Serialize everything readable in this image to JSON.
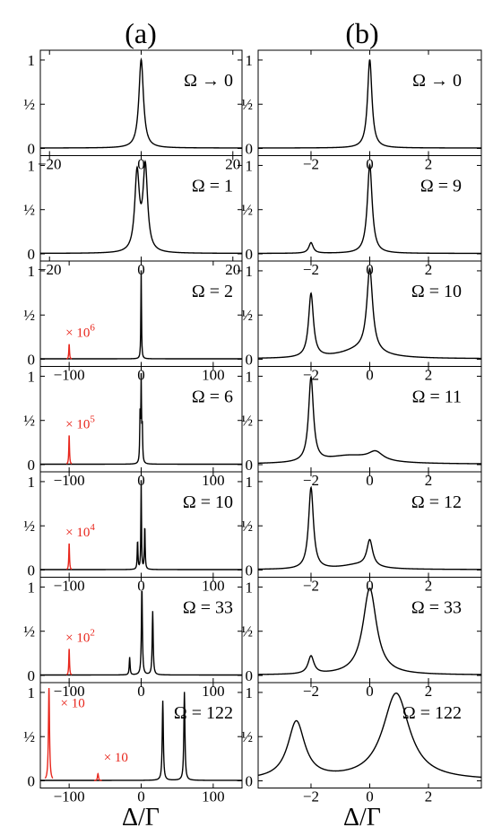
{
  "figure": {
    "column_titles": [
      "(a)",
      "(b)"
    ],
    "xlabel": "Δ/Γ",
    "y_ticks": [
      "1",
      "½",
      "0"
    ],
    "colors": {
      "curve": "#000000",
      "inset": "#e8261c",
      "axes": "#000000"
    }
  },
  "chart_data": [
    {
      "col": "a",
      "type": "line",
      "omega": "Ω → 0",
      "xlim": [
        -22,
        22
      ],
      "xticks": [
        "−20",
        "0",
        "20"
      ],
      "ylim": [
        0,
        1.05
      ],
      "series": [
        {
          "peaks": [
            {
              "x": 0,
              "h": 1.0,
              "w": 0.6
            }
          ],
          "baseline": 0.005
        }
      ],
      "scaled": null
    },
    {
      "col": "a",
      "type": "line",
      "omega": "Ω = 1",
      "xlim": [
        -22,
        22
      ],
      "xticks": [
        "−20",
        "0",
        "20"
      ],
      "ylim": [
        0,
        1.05
      ],
      "series": [
        {
          "peaks": [
            {
              "x": -0.9,
              "h": 0.88,
              "w": 0.6
            },
            {
              "x": 0.9,
              "h": 0.95,
              "w": 0.6
            }
          ],
          "baseline": 0.005
        }
      ],
      "scaled": null
    },
    {
      "col": "a",
      "type": "line",
      "omega": "Ω = 2",
      "xlim": [
        -140,
        140
      ],
      "xticks": [
        "−100",
        "0",
        "100"
      ],
      "ylim": [
        0,
        1.05
      ],
      "series": [
        {
          "peaks": [
            {
              "x": 0,
              "h": 1.0,
              "w": 0.5
            }
          ],
          "baseline": 0.005
        }
      ],
      "scaled": {
        "label": "× 10",
        "exp": "6",
        "peaks": [
          {
            "x": -100,
            "h": 0.17,
            "w": 0.6
          }
        ]
      }
    },
    {
      "col": "a",
      "type": "line",
      "omega": "Ω = 6",
      "xlim": [
        -140,
        140
      ],
      "xticks": [
        "−100",
        "0",
        "100"
      ],
      "ylim": [
        0,
        1.05
      ],
      "series": [
        {
          "peaks": [
            {
              "x": -1.5,
              "h": 0.55,
              "w": 0.6
            },
            {
              "x": 0,
              "h": 0.9,
              "w": 0.5
            },
            {
              "x": 1.5,
              "h": 0.4,
              "w": 0.6
            }
          ],
          "baseline": 0.005
        }
      ],
      "scaled": {
        "label": "× 10",
        "exp": "5",
        "peaks": [
          {
            "x": -100,
            "h": 0.33,
            "w": 0.6
          }
        ]
      }
    },
    {
      "col": "a",
      "type": "line",
      "omega": "Ω = 10",
      "xlim": [
        -140,
        140
      ],
      "xticks": [
        "−100",
        "0",
        "100"
      ],
      "ylim": [
        0,
        1.05
      ],
      "series": [
        {
          "peaks": [
            {
              "x": -5,
              "h": 0.33,
              "w": 0.6
            },
            {
              "x": 0,
              "h": 1.0,
              "w": 0.5
            },
            {
              "x": 5,
              "h": 0.5,
              "w": 0.6
            }
          ],
          "baseline": 0.005
        }
      ],
      "scaled": {
        "label": "× 10",
        "exp": "4",
        "peaks": [
          {
            "x": -100,
            "h": 0.3,
            "w": 0.6
          }
        ]
      }
    },
    {
      "col": "a",
      "type": "line",
      "omega": "Ω = 33",
      "xlim": [
        -140,
        140
      ],
      "xticks": [
        "−100",
        "0",
        "100"
      ],
      "ylim": [
        0,
        1.05
      ],
      "series": [
        {
          "peaks": [
            {
              "x": -16,
              "h": 0.2,
              "w": 0.7
            },
            {
              "x": 1,
              "h": 1.0,
              "w": 0.8
            },
            {
              "x": 16,
              "h": 0.72,
              "w": 0.8
            }
          ],
          "baseline": 0.005
        }
      ],
      "scaled": {
        "label": "× 10",
        "exp": "2",
        "peaks": [
          {
            "x": -100,
            "h": 0.3,
            "w": 0.6
          }
        ]
      }
    },
    {
      "col": "a",
      "type": "line",
      "omega": "Ω = 122",
      "xlim": [
        -140,
        140
      ],
      "xticks": [
        "−100",
        "0",
        "100"
      ],
      "ylim": [
        0,
        1.05
      ],
      "series": [
        {
          "peaks": [
            {
              "x": 30,
              "h": 0.9,
              "w": 0.9
            },
            {
              "x": 60,
              "h": 1.0,
              "w": 0.9
            }
          ],
          "baseline": 0.005
        }
      ],
      "scaled": {
        "label": "× 10",
        "exp": "",
        "peaks": [
          {
            "x": -128,
            "h": 1.05,
            "w": 0.9
          },
          {
            "x": -60,
            "h": 0.08,
            "w": 0.9
          }
        ],
        "labels": [
          {
            "text": "× 10",
            "x": -112,
            "y": 0.83
          },
          {
            "text": "× 10",
            "x": -52,
            "y": 0.22
          }
        ]
      }
    },
    {
      "col": "b",
      "type": "line",
      "omega": "Ω → 0",
      "xlim": [
        -3.8,
        3.8
      ],
      "xticks": [
        "−2",
        "0",
        "2"
      ],
      "ylim": [
        0,
        1.05
      ],
      "series": [
        {
          "peaks": [
            {
              "x": 0,
              "h": 1.0,
              "w": 0.09
            }
          ],
          "baseline": 0.005
        }
      ],
      "scaled": null
    },
    {
      "col": "b",
      "type": "line",
      "omega": "Ω = 9",
      "xlim": [
        -3.8,
        3.8
      ],
      "xticks": [
        "−2",
        "0",
        "2"
      ],
      "ylim": [
        0,
        1.05
      ],
      "series": [
        {
          "peaks": [
            {
              "x": -2,
              "h": 0.12,
              "w": 0.09
            },
            {
              "x": 0,
              "h": 1.0,
              "w": 0.1
            }
          ],
          "baseline": 0.005
        }
      ],
      "scaled": null
    },
    {
      "col": "b",
      "type": "line",
      "omega": "Ω = 10",
      "xlim": [
        -3.8,
        3.8
      ],
      "xticks": [
        "−2",
        "0",
        "2"
      ],
      "ylim": [
        0,
        1.05
      ],
      "series": [
        {
          "peaks": [
            {
              "x": -2,
              "h": 0.72,
              "w": 0.1
            },
            {
              "x": 0,
              "h": 0.93,
              "w": 0.12
            },
            {
              "x": -0.3,
              "h": 0.1,
              "w": 0.8
            }
          ],
          "baseline": 0.005
        }
      ],
      "scaled": null
    },
    {
      "col": "b",
      "type": "line",
      "omega": "Ω = 11",
      "xlim": [
        -3.8,
        3.8
      ],
      "xticks": [
        "−2",
        "0",
        "2"
      ],
      "ylim": [
        0,
        1.05
      ],
      "series": [
        {
          "peaks": [
            {
              "x": -2,
              "h": 0.95,
              "w": 0.1
            },
            {
              "x": -0.7,
              "h": 0.09,
              "w": 1.0
            },
            {
              "x": 0.2,
              "h": 0.1,
              "w": 0.3
            }
          ],
          "baseline": 0.005
        }
      ],
      "scaled": null
    },
    {
      "col": "b",
      "type": "line",
      "omega": "Ω = 12",
      "xlim": [
        -3.8,
        3.8
      ],
      "xticks": [
        "−2",
        "0",
        "2"
      ],
      "ylim": [
        0,
        1.05
      ],
      "series": [
        {
          "peaks": [
            {
              "x": -2,
              "h": 0.92,
              "w": 0.1
            },
            {
              "x": 0,
              "h": 0.3,
              "w": 0.12
            },
            {
              "x": -0.4,
              "h": 0.05,
              "w": 0.7
            }
          ],
          "baseline": 0.005
        }
      ],
      "scaled": null
    },
    {
      "col": "b",
      "type": "line",
      "omega": "Ω = 33",
      "xlim": [
        -3.8,
        3.8
      ],
      "xticks": [
        "−2",
        "0",
        "2"
      ],
      "ylim": [
        0,
        1.05
      ],
      "series": [
        {
          "peaks": [
            {
              "x": -2,
              "h": 0.2,
              "w": 0.12
            },
            {
              "x": 0,
              "h": 0.98,
              "w": 0.28
            }
          ],
          "baseline": 0.005
        }
      ],
      "scaled": null
    },
    {
      "col": "b",
      "type": "line",
      "omega": "Ω = 122",
      "xlim": [
        -3.8,
        3.8
      ],
      "xticks": [
        "−2",
        "0",
        "2"
      ],
      "ylim": [
        0,
        1.05
      ],
      "series": [
        {
          "peaks": [
            {
              "x": -2.5,
              "h": 0.65,
              "w": 0.35
            },
            {
              "x": 0.9,
              "h": 0.98,
              "w": 0.55
            }
          ],
          "baseline": 0.005
        }
      ],
      "scaled": null
    }
  ]
}
